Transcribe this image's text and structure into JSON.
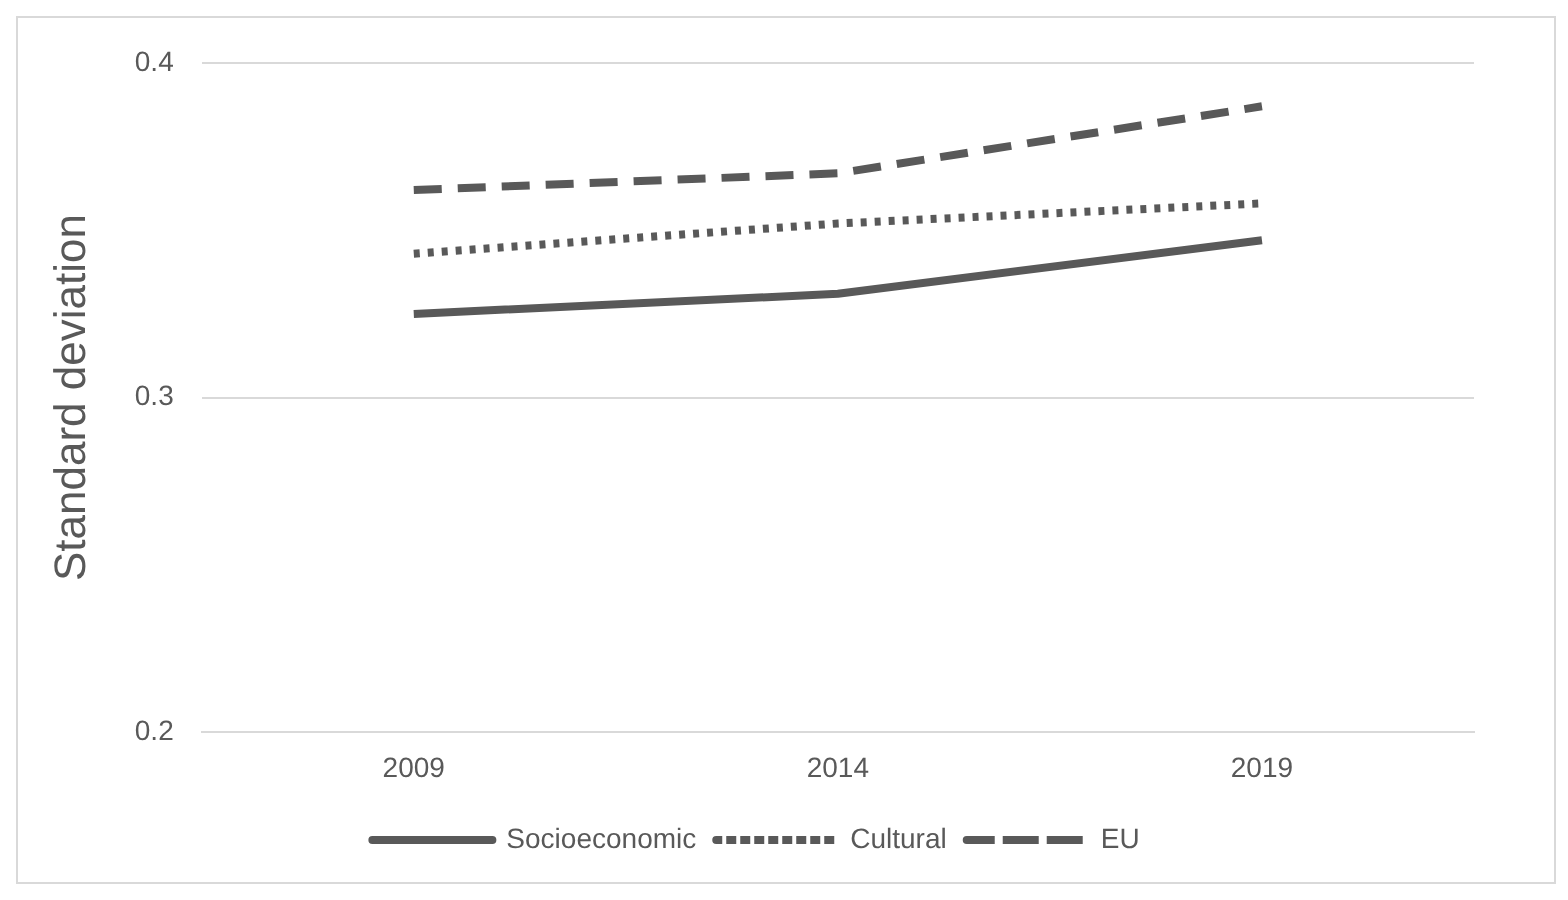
{
  "chart_data": {
    "type": "line",
    "ylabel": "Standard deviation",
    "categories": [
      "2009",
      "2014",
      "2019"
    ],
    "series": [
      {
        "name": "Socioeconomic",
        "color": "#595959",
        "values": [
          0.325,
          0.331,
          0.347
        ],
        "line_style": "solid"
      },
      {
        "name": "Cultural",
        "color": "#595959",
        "values": [
          0.343,
          0.352,
          0.358
        ],
        "line_style": "dotted"
      },
      {
        "name": "EU",
        "color": "#595959",
        "values": [
          0.362,
          0.367,
          0.387
        ],
        "line_style": "dashed"
      }
    ],
    "ylim": [
      0.2,
      0.4
    ],
    "yticks": [
      0.2,
      0.3,
      0.4
    ],
    "grid": "y",
    "legend": "bottom",
    "marker": "none"
  }
}
